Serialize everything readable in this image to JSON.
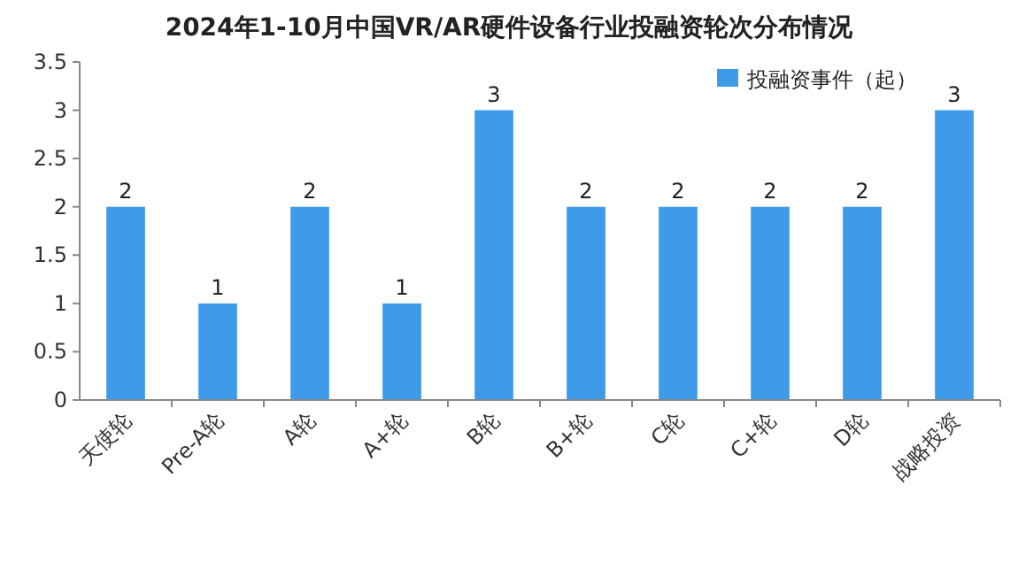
{
  "chart_data": {
    "type": "bar",
    "title": "2024年1-10月中国VR/AR硬件设备行业投融资轮次分布情况",
    "categories": [
      "天使轮",
      "Pre-A轮",
      "A轮",
      "A+轮",
      "B轮",
      "B+轮",
      "C轮",
      "C+轮",
      "D轮",
      "战略投资"
    ],
    "series": [
      {
        "name": "投融资事件（起）",
        "color": "#3d9be9",
        "values": [
          2,
          1,
          2,
          1,
          3,
          2,
          2,
          2,
          2,
          3
        ]
      }
    ],
    "ylim": [
      0,
      3.5
    ],
    "yticks": [
      0,
      0.5,
      1,
      1.5,
      2,
      2.5,
      3,
      3.5
    ],
    "grid": false,
    "legend": "top right",
    "data_labels": true
  }
}
